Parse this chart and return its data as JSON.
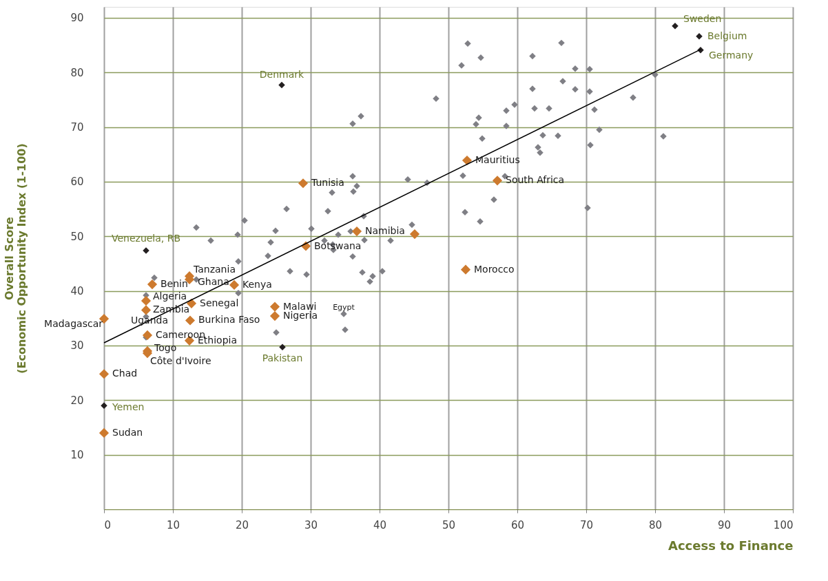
{
  "chart_data": {
    "type": "scatter",
    "xlabel": "Access to Finance",
    "ylabel": "Overall Score\n(Economic Opportunity Index (1-100)",
    "xlim": [
      0,
      100
    ],
    "ylim": [
      0,
      92
    ],
    "xticks": [
      0,
      10,
      20,
      30,
      40,
      50,
      60,
      70,
      80,
      90,
      100
    ],
    "yticks": [
      10,
      20,
      30,
      40,
      50,
      60,
      70,
      80,
      90
    ],
    "grid": true,
    "marker": "diamond",
    "series": [
      {
        "type": "scatter",
        "color": "#7f7f85",
        "x": [
          33.1,
          26.5,
          32.5,
          20.4,
          13.4,
          19.4,
          30.1,
          24.9,
          15.5,
          24.2,
          32.0,
          34.0,
          33.2,
          33.3,
          23.8,
          19.5,
          27.0,
          29.4,
          7.3,
          13.4,
          19.5,
          6.1,
          6.1,
          25.0,
          6.1,
          48.2,
          37.3,
          36.1,
          54.4,
          54.0,
          58.4,
          58.4,
          59.6,
          62.2,
          62.5,
          54.9,
          36.1,
          36.7,
          36.2,
          44.1,
          46.9,
          52.1,
          58.2,
          56.6,
          52.4,
          54.6,
          37.7,
          44.7,
          35.8,
          37.8,
          41.6,
          36.1,
          37.5,
          40.4,
          39.0,
          38.6,
          34.8,
          35.0,
          52.8,
          51.9,
          54.7,
          62.2,
          66.4,
          68.4,
          70.5,
          66.6,
          68.4,
          70.5,
          80.0,
          76.8,
          64.6,
          71.2,
          63.7,
          65.9,
          71.9,
          81.2,
          63.0,
          63.3,
          70.6,
          70.2
        ],
        "values": [
          58.0,
          55.0,
          54.6,
          52.9,
          51.6,
          50.3,
          51.4,
          51.0,
          49.2,
          48.9,
          49.2,
          50.3,
          48.5,
          47.5,
          46.4,
          45.4,
          43.6,
          43.0,
          42.4,
          42.1,
          39.6,
          39.2,
          35.3,
          32.4,
          31.5,
          75.2,
          72.0,
          70.6,
          71.7,
          70.5,
          73.0,
          70.2,
          74.1,
          77.0,
          73.4,
          67.9,
          61.0,
          59.2,
          58.2,
          60.4,
          59.8,
          61.1,
          61.0,
          56.7,
          54.4,
          52.7,
          53.7,
          52.1,
          50.9,
          49.3,
          49.2,
          46.3,
          43.4,
          43.6,
          42.7,
          41.7,
          35.8,
          32.9,
          85.3,
          81.3,
          82.7,
          83.0,
          85.4,
          80.7,
          80.6,
          78.4,
          76.9,
          76.5,
          79.6,
          75.4,
          73.4,
          73.2,
          68.5,
          68.4,
          69.5,
          68.3,
          66.3,
          65.3,
          66.7,
          55.2
        ]
      },
      {
        "type": "scatter",
        "color": "#cd7a2e",
        "x": [
          0,
          0,
          0,
          7.0,
          6.1,
          6.1,
          6.3,
          6.3,
          6.3,
          12.4,
          12.4,
          12.7,
          12.5,
          12.4,
          18.9,
          24.8,
          24.8,
          28.9,
          29.3,
          36.7,
          45.1,
          52.7,
          57.1,
          52.5
        ],
        "values": [
          34.9,
          24.8,
          14.0,
          41.2,
          38.2,
          36.5,
          31.9,
          29.0,
          28.6,
          42.7,
          42.1,
          37.7,
          34.6,
          30.9,
          41.1,
          37.1,
          35.4,
          59.7,
          48.2,
          50.9,
          50.4,
          63.9,
          60.2,
          43.9
        ]
      },
      {
        "type": "scatter",
        "color": "#231f20",
        "x": [
          82.9,
          86.4,
          86.6,
          25.8,
          6.1,
          25.9,
          0
        ],
        "values": [
          88.5,
          86.6,
          84.1,
          77.7,
          47.4,
          29.7,
          19.0
        ]
      },
      {
        "type": "line",
        "color": "#000000",
        "marker": "none",
        "line_style": "solid",
        "x": [
          0,
          86.6
        ],
        "values": [
          30.5,
          84.2
        ]
      }
    ],
    "annotations": [
      {
        "text": "Sweden",
        "x": 82.9,
        "y": 88.5
      },
      {
        "text": "Belgium",
        "x": 86.4,
        "y": 86.6
      },
      {
        "text": "Germany",
        "x": 86.6,
        "y": 84.1
      },
      {
        "text": "Denmark",
        "x": 25.8,
        "y": 77.7
      },
      {
        "text": "Venezuela, RB",
        "x": 6.1,
        "y": 47.4
      },
      {
        "text": "Pakistan",
        "x": 25.9,
        "y": 29.7
      },
      {
        "text": "Yemen",
        "x": 0,
        "y": 19.0
      },
      {
        "text": "Madagascar",
        "x": 0,
        "y": 34.9
      },
      {
        "text": "Chad",
        "x": 0,
        "y": 24.8
      },
      {
        "text": "Sudan",
        "x": 0,
        "y": 14.0
      },
      {
        "text": "Benin",
        "x": 7.0,
        "y": 41.2
      },
      {
        "text": "Algeria",
        "x": 6.1,
        "y": 38.2
      },
      {
        "text": "Zambia",
        "x": 6.1,
        "y": 36.5
      },
      {
        "text": "Cameroon",
        "x": 6.3,
        "y": 31.9
      },
      {
        "text": "Togo",
        "x": 6.3,
        "y": 29.0
      },
      {
        "text": "Côte d'Ivoire",
        "x": 6.3,
        "y": 28.6
      },
      {
        "text": "Uganda",
        "x": 6.1,
        "y": 35.3
      },
      {
        "text": "Tanzania",
        "x": 12.4,
        "y": 42.7
      },
      {
        "text": "Ghana",
        "x": 12.4,
        "y": 42.1
      },
      {
        "text": "Senegal",
        "x": 12.7,
        "y": 37.7
      },
      {
        "text": "Burkina Faso",
        "x": 12.5,
        "y": 34.6
      },
      {
        "text": "Ethiopia",
        "x": 12.4,
        "y": 30.9
      },
      {
        "text": "Kenya",
        "x": 18.9,
        "y": 41.1
      },
      {
        "text": "Malawi",
        "x": 24.8,
        "y": 37.1
      },
      {
        "text": "Nigeria",
        "x": 24.8,
        "y": 35.4
      },
      {
        "text": "Egypt",
        "x": 34.8,
        "y": 35.8
      },
      {
        "text": "Tunisia",
        "x": 28.9,
        "y": 59.7
      },
      {
        "text": "Botswana",
        "x": 29.3,
        "y": 48.2
      },
      {
        "text": "Namibia",
        "x": 36.7,
        "y": 50.9
      },
      {
        "text": "Mauritius",
        "x": 52.7,
        "y": 63.9
      },
      {
        "text": "South Africa",
        "x": 57.1,
        "y": 60.2
      },
      {
        "text": "Morocco",
        "x": 52.5,
        "y": 43.9
      }
    ]
  }
}
